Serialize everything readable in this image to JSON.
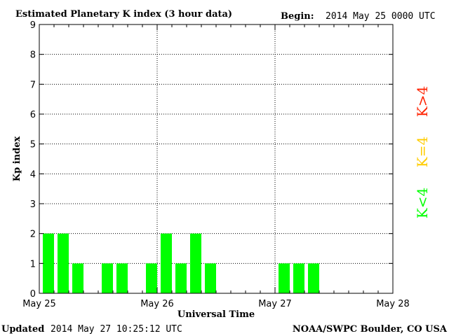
{
  "header": {
    "title": "Estimated Planetary K index (3 hour data)",
    "begin_label": "Begin:",
    "begin_value": "2014 May 25 0000 UTC"
  },
  "footer": {
    "updated_label": "Updated",
    "updated_value": "2014 May 27 10:25:12 UTC",
    "source": "NOAA/SWPC Boulder, CO USA"
  },
  "legend": {
    "low": "K<4",
    "mid": "K=4",
    "high": "K>4"
  },
  "colors": {
    "low": "#00ff00",
    "mid": "#ffcc00",
    "high": "#ff2200",
    "axis": "#000000",
    "grid": "#000000"
  },
  "chart_data": {
    "type": "bar",
    "title": "Estimated Planetary K index (3 hour data)",
    "xlabel": "Universal Time",
    "ylabel": "Kp index",
    "ylim": [
      0,
      9
    ],
    "yticks": [
      "0",
      "1",
      "2",
      "3",
      "4",
      "5",
      "6",
      "7",
      "8",
      "9"
    ],
    "xticks": [
      "May 25",
      "May 26",
      "May 27",
      "May 28"
    ],
    "interval_hours": 3,
    "grid": true,
    "values": [
      2,
      2,
      1,
      null,
      1,
      1,
      null,
      1,
      2,
      1,
      2,
      1,
      null,
      null,
      null,
      null,
      1,
      1,
      1,
      null,
      null,
      null,
      null,
      null
    ]
  }
}
